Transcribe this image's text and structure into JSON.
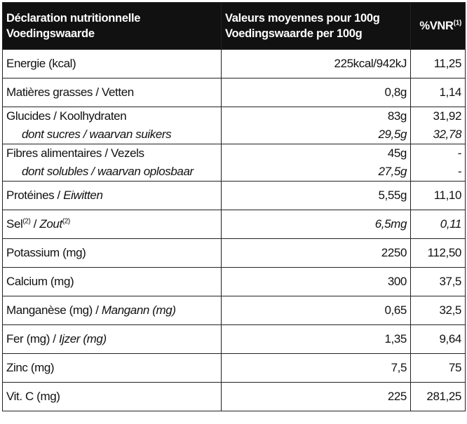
{
  "header": {
    "name_fr": "Déclaration nutritionnelle",
    "name_nl": "Voedingswaarde",
    "value_fr": "Valeurs moyennes pour 100g",
    "value_nl": "Voedingswaarde per 100g",
    "pct_label": "%VNR",
    "pct_note": "(1)"
  },
  "rows": {
    "energie": {
      "name": "Energie (kcal)",
      "value": "225kcal/942kJ",
      "pct": "11,25"
    },
    "graisses": {
      "name": "Matières grasses / Vetten",
      "value": "0,8g",
      "pct": "1,14"
    },
    "glucides": {
      "name": "Glucides  / Koolhydraten",
      "value": "83g",
      "pct": "31,92",
      "sub_name": "dont sucres / waarvan suikers",
      "sub_value": "29,5g",
      "sub_pct": "32,78"
    },
    "fibres": {
      "name": "Fibres alimentaires / Vezels",
      "value": "45g",
      "pct": "-",
      "sub_name": "dont solubles / waarvan oplosbaar",
      "sub_value": "27,5g",
      "sub_pct": "-"
    },
    "proteines": {
      "name_fr": "Protéines / ",
      "name_nl": "Eiwitten",
      "value": "5,55g",
      "pct": "11,10"
    },
    "sel": {
      "name_fr": "Sel",
      "note_fr": "(2)",
      "sep": " / ",
      "name_nl": "Zout",
      "note_nl": "(2)",
      "value": "6,5mg",
      "pct": "0,11"
    },
    "potassium": {
      "name": "Potassium (mg)",
      "value": "2250",
      "pct": "112,50"
    },
    "calcium": {
      "name": "Calcium (mg)",
      "value": "300",
      "pct": "37,5"
    },
    "manganese": {
      "name_fr": "Manganèse (mg) / ",
      "name_nl": "Mangann (mg)",
      "value": "0,65",
      "pct": "32,5"
    },
    "fer": {
      "name_fr": "Fer (mg) / ",
      "name_nl": "Ijzer (mg)",
      "value": "1,35",
      "pct": "9,64"
    },
    "zinc": {
      "name": "Zinc (mg)",
      "value": "7,5",
      "pct": "75"
    },
    "vitc": {
      "name": "Vit. C (mg)",
      "value": "225",
      "pct": "281,25"
    }
  }
}
